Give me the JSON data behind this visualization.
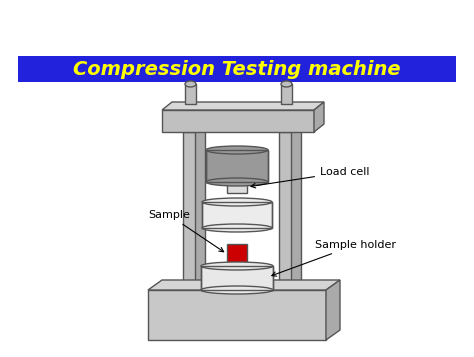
{
  "title": "Compression Testing machine",
  "title_color": "#FFFF00",
  "title_bg_color": "#2222DD",
  "bg_color": "#FFFFFF",
  "machine_color": "#C0C0C0",
  "machine_edge_color": "#555555",
  "load_cell_upper_color": "#999999",
  "load_cell_lower_color": "#ECECEC",
  "sample_color": "#CC0000",
  "sample_holder_color": "#E8E8E8",
  "base_color": "#C8C8C8",
  "labels": {
    "load_cell": "Load cell",
    "sample": "Sample",
    "sample_holder": "Sample holder"
  },
  "title_fontsize": 14,
  "label_fontsize": 8
}
